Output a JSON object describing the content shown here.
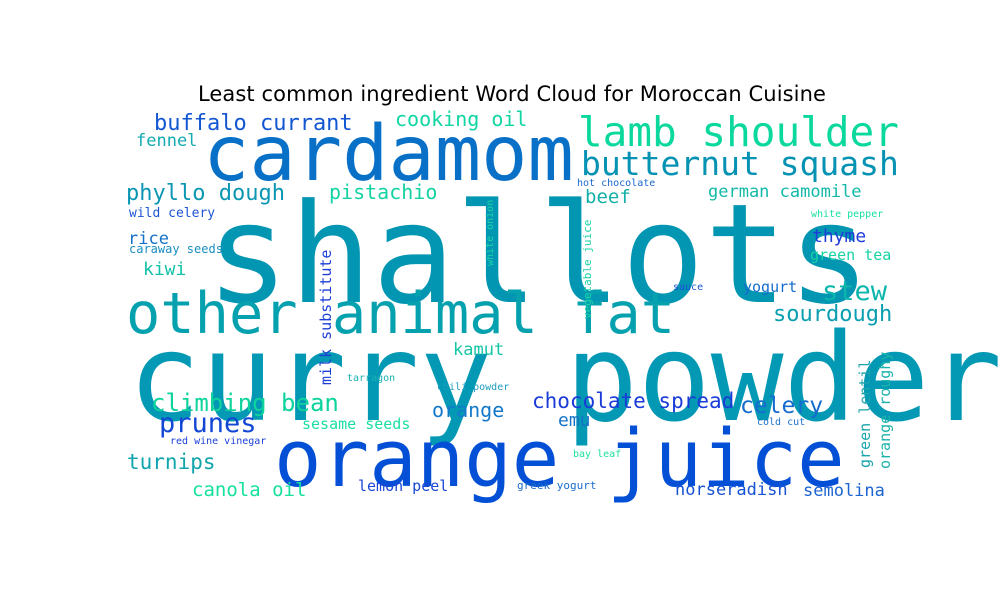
{
  "chart_data": {
    "type": "wordcloud",
    "title": "Least common ingredient Word Cloud for Moroccan Cuisine",
    "words": [
      {
        "text": "shallots",
        "weight": 100,
        "color": "#0396b2",
        "rotate": false
      },
      {
        "text": "curry powder",
        "weight": 92,
        "color": "#0399b4",
        "rotate": false
      },
      {
        "text": "orange juice",
        "weight": 70,
        "color": "#0350d6",
        "rotate": false
      },
      {
        "text": "cardamom",
        "weight": 64,
        "color": "#0870c7",
        "rotate": false
      },
      {
        "text": "other animal fat",
        "weight": 55,
        "color": "#05a1ae",
        "rotate": false
      },
      {
        "text": "lamb shoulder",
        "weight": 38,
        "color": "#0bd89d",
        "rotate": false
      },
      {
        "text": "butternut squash",
        "weight": 31,
        "color": "#0692b2",
        "rotate": false
      },
      {
        "text": "stew",
        "weight": 26,
        "color": "#0ab6ac",
        "rotate": false
      },
      {
        "text": "prunes",
        "weight": 25,
        "color": "#1247d6",
        "rotate": false
      },
      {
        "text": "climbing bean",
        "weight": 22,
        "color": "#0ed39c",
        "rotate": false
      },
      {
        "text": "phyllo dough",
        "weight": 20,
        "color": "#0b96b4",
        "rotate": false
      },
      {
        "text": "buffalo currant",
        "weight": 20,
        "color": "#1256d2",
        "rotate": false
      },
      {
        "text": "sourdough",
        "weight": 19,
        "color": "#099fb1",
        "rotate": false
      },
      {
        "text": "celery",
        "weight": 20,
        "color": "#156ccf",
        "rotate": false
      },
      {
        "text": "chocolate spread",
        "weight": 19,
        "color": "#1a3bd8",
        "rotate": false
      },
      {
        "text": "turnips",
        "weight": 19,
        "color": "#10a5ad",
        "rotate": false
      },
      {
        "text": "cooking oil",
        "weight": 18,
        "color": "#11d6a3",
        "rotate": false
      },
      {
        "text": "pistachio",
        "weight": 18,
        "color": "#13d3a3",
        "rotate": false
      },
      {
        "text": "orange",
        "weight": 18,
        "color": "#1478cb",
        "rotate": false
      },
      {
        "text": "canola oil",
        "weight": 17,
        "color": "#16e19b",
        "rotate": false
      },
      {
        "text": "beef",
        "weight": 17,
        "color": "#12b0a6",
        "rotate": false
      },
      {
        "text": "thyme",
        "weight": 16,
        "color": "#1c3dd6",
        "rotate": false
      },
      {
        "text": "emu",
        "weight": 16,
        "color": "#1473c9",
        "rotate": false
      },
      {
        "text": "german camomile",
        "weight": 15,
        "color": "#12b9a9",
        "rotate": false
      },
      {
        "text": "kiwi",
        "weight": 15,
        "color": "#14c2a9",
        "rotate": false
      },
      {
        "text": "kamut",
        "weight": 15,
        "color": "#15c6a5",
        "rotate": false
      },
      {
        "text": "horseradish",
        "weight": 15,
        "color": "#1551d4",
        "rotate": false
      },
      {
        "text": "semolina",
        "weight": 15,
        "color": "#1b64d0",
        "rotate": false
      },
      {
        "text": "fennel",
        "weight": 15,
        "color": "#12aab0",
        "rotate": false
      },
      {
        "text": "rice",
        "weight": 15,
        "color": "#1570c8",
        "rotate": false
      },
      {
        "text": "yogurt",
        "weight": 13,
        "color": "#156ccd",
        "rotate": false
      },
      {
        "text": "lemon peel",
        "weight": 13,
        "color": "#1a47d6",
        "rotate": false
      },
      {
        "text": "sesame seeds",
        "weight": 13,
        "color": "#19dfa3",
        "rotate": false
      },
      {
        "text": "green tea",
        "weight": 13,
        "color": "#16d3a4",
        "rotate": false
      },
      {
        "text": "milk substitute",
        "weight": 13,
        "color": "#1d3fd6",
        "rotate": true
      },
      {
        "text": "green lentil",
        "weight": 13,
        "color": "#1ba4ad",
        "rotate": true
      },
      {
        "text": "orange roughy",
        "weight": 13,
        "color": "#1bb3aa",
        "rotate": true
      },
      {
        "text": "wild celery",
        "weight": 11,
        "color": "#1d55d4",
        "rotate": false
      },
      {
        "text": "caraway seeds",
        "weight": 11,
        "color": "#1a8ec2",
        "rotate": false
      },
      {
        "text": "greek yogurt",
        "weight": 10,
        "color": "#1a6dcc",
        "rotate": false
      },
      {
        "text": "vegetable juice",
        "weight": 10,
        "color": "#1ad3a6",
        "rotate": true
      },
      {
        "text": "white onion",
        "weight": 9,
        "color": "#1ad6a8",
        "rotate": true
      },
      {
        "text": "chili powder",
        "weight": 9,
        "color": "#1a9dc0",
        "rotate": false
      },
      {
        "text": "red wine vinegar",
        "weight": 9,
        "color": "#1d40d8",
        "rotate": false
      },
      {
        "text": "cold cut",
        "weight": 9,
        "color": "#1a70cc",
        "rotate": false
      },
      {
        "text": "white pepper",
        "weight": 9,
        "color": "#1ae0a4",
        "rotate": false
      },
      {
        "text": "hot chocolate",
        "weight": 9,
        "color": "#1a68cf",
        "rotate": false
      },
      {
        "text": "tarragon",
        "weight": 9,
        "color": "#1ab2b4",
        "rotate": false
      },
      {
        "text": "bay leaf",
        "weight": 9,
        "color": "#1ae09f",
        "rotate": false
      },
      {
        "text": "sauce",
        "weight": 8,
        "color": "#1a56d3",
        "rotate": false
      }
    ]
  }
}
